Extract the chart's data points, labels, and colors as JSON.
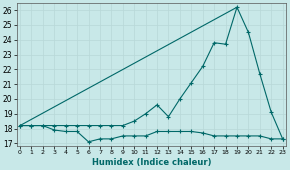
{
  "xlabel": "Humidex (Indice chaleur)",
  "background_color": "#c8e8e8",
  "grid_color": "#d8eeee",
  "line_color": "#006868",
  "x": [
    0,
    1,
    2,
    3,
    4,
    5,
    6,
    7,
    8,
    9,
    10,
    11,
    12,
    13,
    14,
    15,
    16,
    17,
    18,
    19,
    20,
    21,
    22,
    23
  ],
  "series_zigzag": [
    18.2,
    18.2,
    18.2,
    18.2,
    18.2,
    18.2,
    18.2,
    18.2,
    18.2,
    18.2,
    18.5,
    19.0,
    19.6,
    18.8,
    20.0,
    21.1,
    22.2,
    23.8,
    23.7,
    26.2,
    24.5,
    21.7,
    19.1,
    17.3
  ],
  "series_low": [
    18.2,
    18.2,
    18.2,
    17.9,
    17.8,
    17.8,
    17.1,
    17.3,
    17.3,
    17.5,
    17.5,
    17.5,
    17.8,
    17.8,
    17.8,
    17.8,
    17.7,
    17.5,
    17.5,
    17.5,
    17.5,
    17.5,
    17.3,
    17.3
  ],
  "series_line_x": [
    0,
    19
  ],
  "series_line_y": [
    18.2,
    26.2
  ],
  "ylim": [
    16.8,
    26.5
  ],
  "xlim": [
    -0.3,
    23.3
  ],
  "yticks": [
    17,
    18,
    19,
    20,
    21,
    22,
    23,
    24,
    25,
    26
  ],
  "xticks": [
    0,
    1,
    2,
    3,
    4,
    5,
    6,
    7,
    8,
    9,
    10,
    11,
    12,
    13,
    14,
    15,
    16,
    17,
    18,
    19,
    20,
    21,
    22,
    23
  ]
}
